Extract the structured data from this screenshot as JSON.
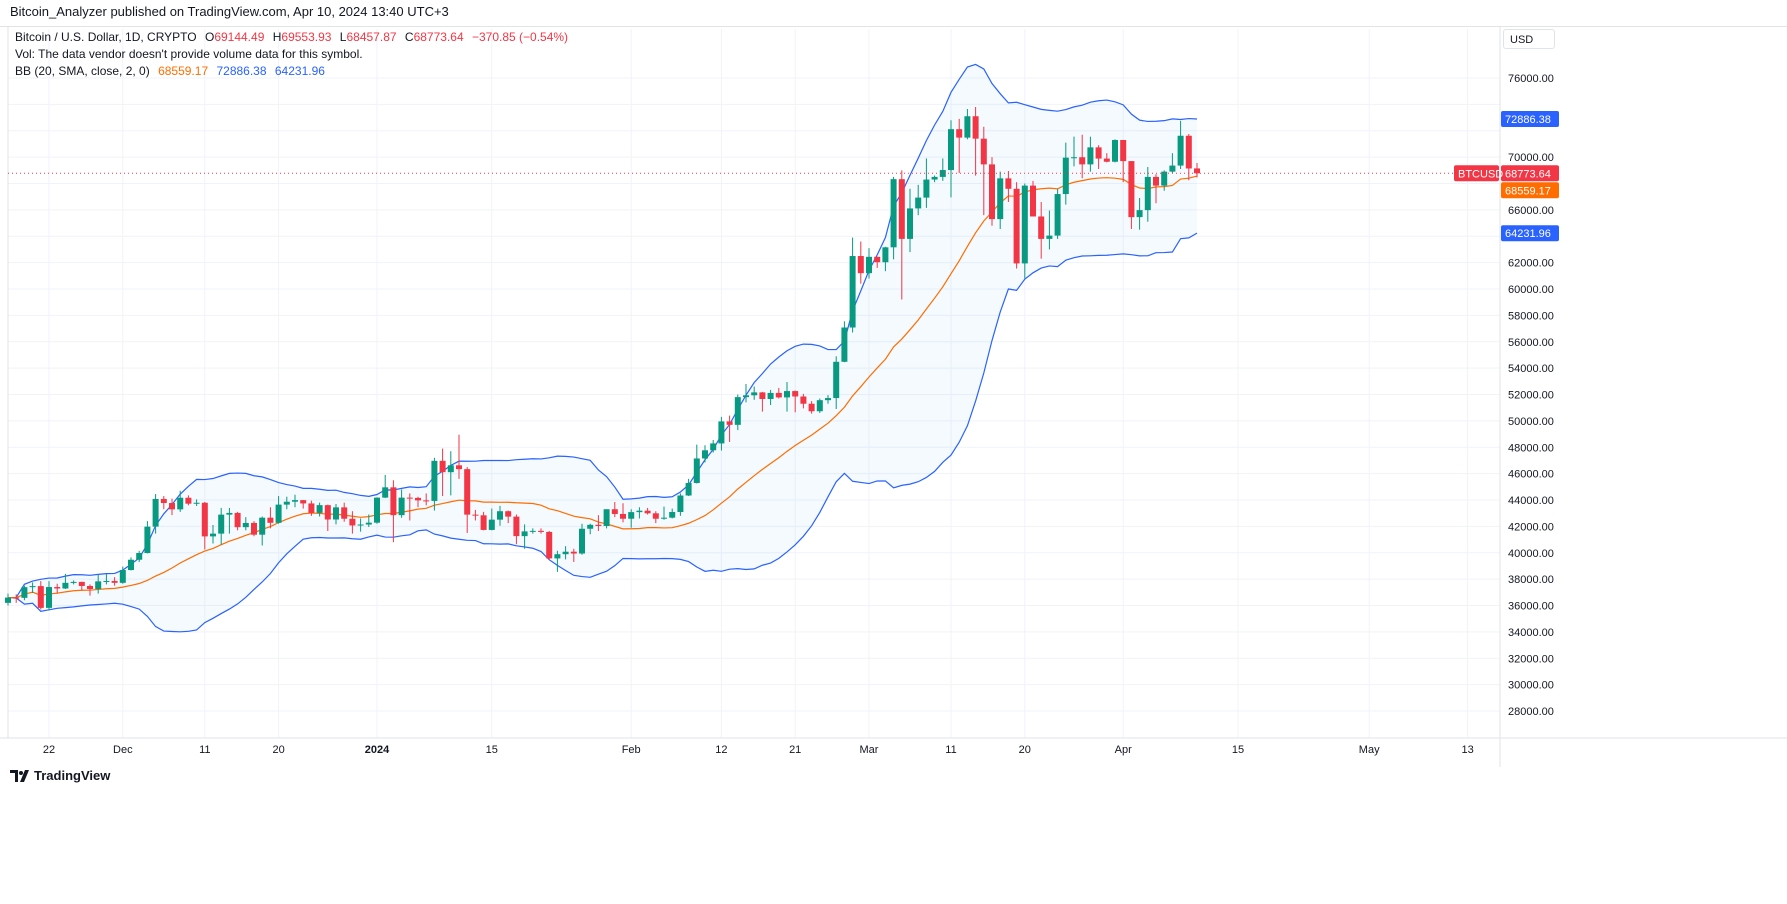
{
  "publisher_line": "Bitcoin_Analyzer published on TradingView.com, Apr 10, 2024 13:40 UTC+3",
  "legend": {
    "symbol": "Bitcoin / U.S. Dollar, 1D, CRYPTO",
    "open_label": "O",
    "open": "69144.49",
    "high_label": "H",
    "high": "69553.93",
    "low_label": "L",
    "low": "68457.87",
    "close_label": "C",
    "close": "68773.64",
    "change": "−370.85 (−0.54%)",
    "vol_note": "Vol: The data vendor doesn't provide volume data for this symbol.",
    "bb_label": "BB (20, SMA, close, 2, 0)",
    "bb_basis": "68559.17",
    "bb_upper": "72886.38",
    "bb_lower": "64231.96"
  },
  "currency": "USD",
  "footer_brand": "TradingView",
  "colors": {
    "up": "#089981",
    "down": "#f23645",
    "bb_basis": "#ff6d00",
    "bb_band": "#2962ff",
    "bb_fill": "#2196f3",
    "last_price": "#f23645"
  },
  "chart_data": {
    "type": "candlestick",
    "indicator": "Bollinger Bands (20, SMA, close, 2)",
    "ylim": [
      26000,
      78000
    ],
    "y_ticks": [
      28000,
      30000,
      32000,
      34000,
      36000,
      38000,
      40000,
      42000,
      44000,
      46000,
      48000,
      50000,
      52000,
      54000,
      56000,
      58000,
      60000,
      62000,
      64000,
      66000,
      68000,
      70000,
      72000,
      74000,
      76000
    ],
    "x_ticks": [
      {
        "label": "22",
        "date": "2023-11-22"
      },
      {
        "label": "Dec",
        "date": "2023-12-01"
      },
      {
        "label": "11",
        "date": "2023-12-11"
      },
      {
        "label": "20",
        "date": "2023-12-20"
      },
      {
        "label": "2024",
        "date": "2024-01-01"
      },
      {
        "label": "15",
        "date": "2024-01-15"
      },
      {
        "label": "Feb",
        "date": "2024-02-01"
      },
      {
        "label": "12",
        "date": "2024-02-12"
      },
      {
        "label": "21",
        "date": "2024-02-21"
      },
      {
        "label": "Mar",
        "date": "2024-03-01"
      },
      {
        "label": "11",
        "date": "2024-03-11"
      },
      {
        "label": "20",
        "date": "2024-03-20"
      },
      {
        "label": "Apr",
        "date": "2024-04-01"
      },
      {
        "label": "15",
        "date": "2024-04-15"
      },
      {
        "label": "May",
        "date": "2024-05-01"
      },
      {
        "label": "13",
        "date": "2024-05-13"
      }
    ],
    "x_end_date": "2024-05-17",
    "price_badges": {
      "symbol_label": "BTCUSD",
      "last": "68773.64",
      "basis": "68559.17",
      "upper": "72886.38",
      "lower": "64231.96"
    },
    "candles_columns": [
      "date",
      "open",
      "high",
      "low",
      "close"
    ],
    "candles": [
      [
        "2023-11-17",
        36200,
        36900,
        36000,
        36600
      ],
      [
        "2023-11-18",
        36600,
        36850,
        36200,
        36580
      ],
      [
        "2023-11-19",
        36580,
        37500,
        36400,
        37390
      ],
      [
        "2023-11-20",
        37390,
        37750,
        36950,
        37470
      ],
      [
        "2023-11-21",
        37470,
        37850,
        35700,
        35820
      ],
      [
        "2023-11-22",
        35820,
        37850,
        35650,
        37400
      ],
      [
        "2023-11-23",
        37400,
        37650,
        36900,
        37290
      ],
      [
        "2023-11-24",
        37290,
        38400,
        37250,
        37720
      ],
      [
        "2023-11-25",
        37720,
        37900,
        37600,
        37790
      ],
      [
        "2023-11-26",
        37790,
        37800,
        37150,
        37480
      ],
      [
        "2023-11-27",
        37480,
        37600,
        36750,
        37250
      ],
      [
        "2023-11-28",
        37250,
        38350,
        36900,
        37830
      ],
      [
        "2023-11-29",
        37830,
        38400,
        37600,
        37860
      ],
      [
        "2023-11-30",
        37860,
        38150,
        37500,
        37720
      ],
      [
        "2023-12-01",
        37720,
        38950,
        37650,
        38690
      ],
      [
        "2023-12-02",
        38690,
        39650,
        38650,
        39470
      ],
      [
        "2023-12-03",
        39470,
        40150,
        39300,
        39980
      ],
      [
        "2023-12-04",
        39980,
        42400,
        39950,
        41980
      ],
      [
        "2023-12-05",
        41980,
        44450,
        41450,
        44080
      ],
      [
        "2023-12-06",
        44080,
        44300,
        43300,
        43770
      ],
      [
        "2023-12-07",
        43770,
        44100,
        42850,
        43290
      ],
      [
        "2023-12-08",
        43290,
        44700,
        43100,
        44170
      ],
      [
        "2023-12-09",
        44170,
        44350,
        43600,
        43720
      ],
      [
        "2023-12-10",
        43720,
        44050,
        43550,
        43790
      ],
      [
        "2023-12-11",
        43790,
        43850,
        40250,
        41240
      ],
      [
        "2023-12-12",
        41240,
        42100,
        40700,
        41450
      ],
      [
        "2023-12-13",
        41450,
        43400,
        40600,
        42890
      ],
      [
        "2023-12-14",
        42890,
        43400,
        41450,
        43020
      ],
      [
        "2023-12-15",
        43020,
        43100,
        41700,
        41940
      ],
      [
        "2023-12-16",
        41940,
        42700,
        41700,
        42260
      ],
      [
        "2023-12-17",
        42260,
        42400,
        41250,
        41370
      ],
      [
        "2023-12-18",
        41370,
        42750,
        40550,
        42660
      ],
      [
        "2023-12-19",
        42660,
        43450,
        41850,
        42270
      ],
      [
        "2023-12-20",
        42270,
        44300,
        42200,
        43650
      ],
      [
        "2023-12-21",
        43650,
        44250,
        43300,
        43870
      ],
      [
        "2023-12-22",
        43870,
        44400,
        43450,
        43990
      ],
      [
        "2023-12-23",
        43990,
        44000,
        43350,
        43740
      ],
      [
        "2023-12-24",
        43740,
        43950,
        42800,
        43020
      ],
      [
        "2023-12-25",
        43020,
        43800,
        42750,
        43610
      ],
      [
        "2023-12-26",
        43610,
        43650,
        41650,
        42520
      ],
      [
        "2023-12-27",
        42520,
        43700,
        42150,
        43440
      ],
      [
        "2023-12-28",
        43440,
        43800,
        42350,
        42580
      ],
      [
        "2023-12-29",
        42580,
        43150,
        41450,
        42070
      ],
      [
        "2023-12-30",
        42070,
        42600,
        41600,
        42140
      ],
      [
        "2023-12-31",
        42140,
        42900,
        41950,
        42280
      ],
      [
        "2024-01-01",
        42280,
        44200,
        42200,
        44180
      ],
      [
        "2024-01-02",
        44180,
        45900,
        44150,
        44960
      ],
      [
        "2024-01-03",
        44960,
        45500,
        40800,
        42850
      ],
      [
        "2024-01-04",
        42850,
        44800,
        42650,
        44180
      ],
      [
        "2024-01-05",
        44180,
        44500,
        42450,
        44160
      ],
      [
        "2024-01-06",
        44160,
        44250,
        43450,
        43970
      ],
      [
        "2024-01-07",
        43970,
        44500,
        43600,
        43930
      ],
      [
        "2024-01-08",
        43930,
        47200,
        43200,
        46970
      ],
      [
        "2024-01-09",
        46970,
        47900,
        44300,
        46110
      ],
      [
        "2024-01-10",
        46110,
        47700,
        44350,
        46630
      ],
      [
        "2024-01-11",
        46630,
        48950,
        45600,
        46340
      ],
      [
        "2024-01-12",
        46340,
        46500,
        41500,
        42890
      ],
      [
        "2024-01-13",
        42890,
        43250,
        42450,
        42840
      ],
      [
        "2024-01-14",
        42840,
        43100,
        41700,
        41730
      ],
      [
        "2024-01-15",
        41730,
        43350,
        41700,
        42510
      ],
      [
        "2024-01-16",
        42510,
        43550,
        42050,
        43150
      ],
      [
        "2024-01-17",
        43150,
        43200,
        42250,
        42740
      ],
      [
        "2024-01-18",
        42740,
        42900,
        40650,
        41260
      ],
      [
        "2024-01-19",
        41260,
        42150,
        40300,
        41620
      ],
      [
        "2024-01-20",
        41620,
        41850,
        41450,
        41660
      ],
      [
        "2024-01-21",
        41660,
        41850,
        41450,
        41580
      ],
      [
        "2024-01-22",
        41580,
        41650,
        39450,
        39570
      ],
      [
        "2024-01-23",
        39570,
        40150,
        38550,
        39890
      ],
      [
        "2024-01-24",
        39890,
        40500,
        39500,
        40080
      ],
      [
        "2024-01-25",
        40080,
        40300,
        39300,
        39940
      ],
      [
        "2024-01-26",
        39940,
        42200,
        39850,
        41820
      ],
      [
        "2024-01-27",
        41820,
        42200,
        41400,
        42120
      ],
      [
        "2024-01-28",
        42120,
        42850,
        41650,
        42030
      ],
      [
        "2024-01-29",
        42030,
        43300,
        41850,
        43300
      ],
      [
        "2024-01-30",
        43300,
        43850,
        42700,
        42940
      ],
      [
        "2024-01-31",
        42940,
        43750,
        42300,
        42580
      ],
      [
        "2024-02-01",
        42580,
        43300,
        41900,
        43080
      ],
      [
        "2024-02-02",
        43080,
        43450,
        42600,
        43190
      ],
      [
        "2024-02-03",
        43190,
        43400,
        42900,
        42990
      ],
      [
        "2024-02-04",
        42990,
        43150,
        42250,
        42580
      ],
      [
        "2024-02-05",
        42580,
        43500,
        42500,
        42660
      ],
      [
        "2024-02-06",
        42660,
        43350,
        42600,
        43090
      ],
      [
        "2024-02-07",
        43090,
        44500,
        42800,
        44340
      ],
      [
        "2024-02-08",
        44340,
        45600,
        44300,
        45290
      ],
      [
        "2024-02-09",
        45290,
        48200,
        45250,
        47150
      ],
      [
        "2024-02-10",
        47150,
        48150,
        46850,
        47770
      ],
      [
        "2024-02-11",
        47770,
        48550,
        47600,
        48290
      ],
      [
        "2024-02-12",
        48290,
        50300,
        47750,
        49960
      ],
      [
        "2024-02-13",
        49960,
        50400,
        48400,
        49700
      ],
      [
        "2024-02-14",
        49700,
        52000,
        49300,
        51800
      ],
      [
        "2024-02-15",
        51800,
        52800,
        51400,
        51940
      ],
      [
        "2024-02-16",
        51940,
        52600,
        51600,
        52160
      ],
      [
        "2024-02-17",
        52160,
        52200,
        50700,
        51660
      ],
      [
        "2024-02-18",
        51660,
        52350,
        51200,
        52120
      ],
      [
        "2024-02-19",
        52120,
        52500,
        51700,
        51780
      ],
      [
        "2024-02-20",
        51780,
        52950,
        50700,
        52260
      ],
      [
        "2024-02-21",
        52260,
        52300,
        50650,
        51850
      ],
      [
        "2024-02-22",
        51850,
        52050,
        50950,
        51300
      ],
      [
        "2024-02-23",
        51300,
        51500,
        50550,
        50730
      ],
      [
        "2024-02-24",
        50730,
        51700,
        50600,
        51570
      ],
      [
        "2024-02-25",
        51570,
        51950,
        51300,
        51730
      ],
      [
        "2024-02-26",
        51730,
        54900,
        50900,
        54480
      ],
      [
        "2024-02-27",
        54480,
        57550,
        54450,
        57080
      ],
      [
        "2024-02-28",
        57080,
        63900,
        56700,
        62500
      ],
      [
        "2024-02-29",
        62500,
        63600,
        60400,
        61200
      ],
      [
        "2024-03-01",
        61200,
        63100,
        60800,
        62440
      ],
      [
        "2024-03-02",
        62440,
        62450,
        61600,
        62030
      ],
      [
        "2024-03-03",
        62030,
        63200,
        61350,
        63160
      ],
      [
        "2024-03-04",
        63160,
        68500,
        62250,
        68330
      ],
      [
        "2024-03-05",
        68330,
        69000,
        59200,
        63800
      ],
      [
        "2024-03-06",
        63800,
        67600,
        62800,
        66110
      ],
      [
        "2024-03-07",
        66110,
        67900,
        65600,
        66930
      ],
      [
        "2024-03-08",
        66930,
        69900,
        66150,
        68300
      ],
      [
        "2024-03-09",
        68300,
        68600,
        68100,
        68500
      ],
      [
        "2024-03-10",
        68500,
        69900,
        68200,
        69020
      ],
      [
        "2024-03-11",
        69020,
        72800,
        66950,
        72120
      ],
      [
        "2024-03-12",
        72120,
        72900,
        68800,
        71480
      ],
      [
        "2024-03-13",
        71480,
        73650,
        71350,
        73100
      ],
      [
        "2024-03-14",
        73100,
        73800,
        68600,
        71400
      ],
      [
        "2024-03-15",
        71400,
        72300,
        65600,
        69450
      ],
      [
        "2024-03-16",
        69450,
        70000,
        64800,
        65300
      ],
      [
        "2024-03-17",
        65300,
        68900,
        64550,
        68390
      ],
      [
        "2024-03-18",
        68390,
        68950,
        66600,
        67600
      ],
      [
        "2024-03-19",
        67600,
        68100,
        61550,
        61940
      ],
      [
        "2024-03-20",
        61940,
        68000,
        60800,
        67840
      ],
      [
        "2024-03-21",
        67840,
        68200,
        65500,
        65500
      ],
      [
        "2024-03-22",
        65500,
        66600,
        62300,
        63800
      ],
      [
        "2024-03-23",
        63800,
        65950,
        63000,
        64050
      ],
      [
        "2024-03-24",
        64050,
        67600,
        63800,
        67200
      ],
      [
        "2024-03-25",
        67200,
        71100,
        66400,
        69960
      ],
      [
        "2024-03-26",
        69960,
        71550,
        69300,
        69990
      ],
      [
        "2024-03-27",
        69990,
        71700,
        68400,
        69450
      ],
      [
        "2024-03-28",
        69450,
        71550,
        68900,
        70740
      ],
      [
        "2024-03-29",
        70740,
        70900,
        69100,
        69890
      ],
      [
        "2024-03-30",
        69890,
        70300,
        69600,
        69650
      ],
      [
        "2024-03-31",
        69650,
        71350,
        69600,
        71300
      ],
      [
        "2024-04-01",
        71300,
        71300,
        68100,
        69700
      ],
      [
        "2024-04-02",
        69700,
        69700,
        64550,
        65450
      ],
      [
        "2024-04-03",
        65450,
        66900,
        64500,
        65980
      ],
      [
        "2024-04-04",
        65980,
        69250,
        65100,
        68500
      ],
      [
        "2024-04-05",
        68500,
        68700,
        66500,
        67840
      ],
      [
        "2024-04-06",
        67840,
        69000,
        67450,
        68900
      ],
      [
        "2024-04-07",
        68900,
        70300,
        68800,
        69360
      ],
      [
        "2024-04-08",
        69360,
        72750,
        69100,
        71620
      ],
      [
        "2024-04-09",
        71620,
        71750,
        68250,
        69140
      ],
      [
        "2024-04-10",
        69144.49,
        69553.93,
        68457.87,
        68773.64
      ]
    ]
  }
}
